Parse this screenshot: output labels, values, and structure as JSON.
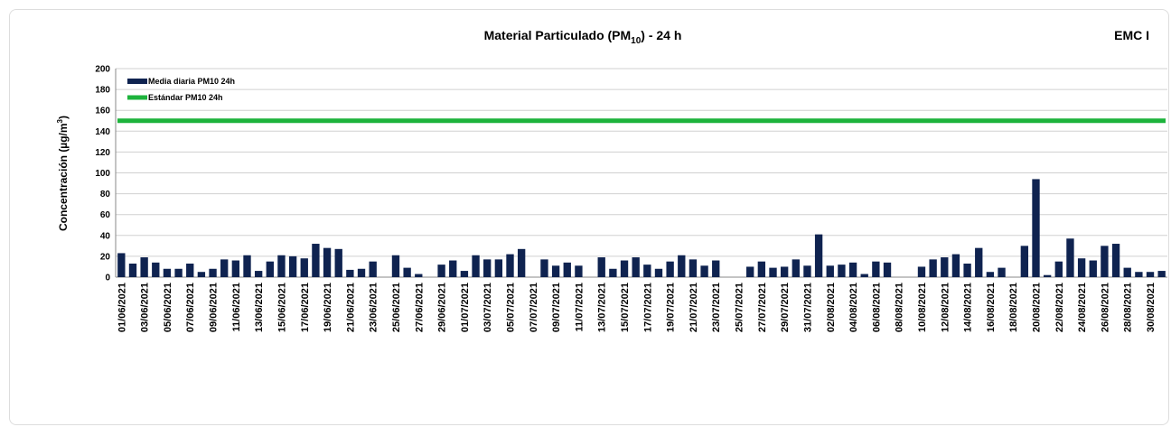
{
  "chart_data": {
    "type": "bar",
    "title_parts": [
      "Material Particulado (PM",
      "10",
      ") - 24 h"
    ],
    "station": "EMC I",
    "ylabel_parts": [
      "Concentración (µg/m",
      "3",
      ")"
    ],
    "categories": [
      "01/06/2021",
      null,
      "03/06/2021",
      null,
      "05/06/2021",
      null,
      "07/06/2021",
      null,
      "09/06/2021",
      null,
      "11/06/2021",
      null,
      "13/06/2021",
      null,
      "15/06/2021",
      null,
      "17/06/2021",
      null,
      "19/06/2021",
      null,
      "21/06/2021",
      null,
      "23/06/2021",
      null,
      "25/06/2021",
      null,
      "27/06/2021",
      null,
      "29/06/2021",
      null,
      "01/07/2021",
      null,
      "03/07/2021",
      null,
      "05/07/2021",
      null,
      "07/07/2021",
      null,
      "09/07/2021",
      null,
      "11/07/2021",
      null,
      "13/07/2021",
      null,
      "15/07/2021",
      null,
      "17/07/2021",
      null,
      "19/07/2021",
      null,
      "21/07/2021",
      null,
      "23/07/2021",
      null,
      "25/07/2021",
      null,
      "27/07/2021",
      null,
      "29/07/2021",
      null,
      "31/07/2021",
      null,
      "02/08/2021",
      null,
      "04/08/2021",
      null,
      "06/08/2021",
      null,
      "08/08/2021",
      null,
      "10/08/2021",
      null,
      "12/08/2021",
      null,
      "14/08/2021",
      null,
      "16/08/2021",
      null,
      "18/08/2021",
      null,
      "20/08/2021",
      null,
      "22/08/2021",
      null,
      "24/08/2021",
      null,
      "26/08/2021",
      null,
      "28/08/2021",
      null,
      "30/08/2021",
      null
    ],
    "series": [
      {
        "name": "Media diaria PM10 24h",
        "color": "#0f2350",
        "values": [
          23,
          13,
          19,
          14,
          8,
          8,
          13,
          5,
          8,
          17,
          16,
          21,
          6,
          15,
          21,
          20,
          18,
          32,
          28,
          27,
          7,
          8,
          15,
          null,
          21,
          9,
          3,
          null,
          12,
          16,
          6,
          21,
          17,
          17,
          22,
          27,
          null,
          17,
          11,
          14,
          11,
          null,
          19,
          8,
          16,
          19,
          12,
          8,
          15,
          21,
          17,
          11,
          16,
          null,
          null,
          10,
          15,
          9,
          10,
          17,
          11,
          41,
          11,
          12,
          14,
          3,
          15,
          14,
          null,
          null,
          10,
          17,
          19,
          22,
          13,
          28,
          5,
          9,
          null,
          30,
          94,
          2,
          15,
          37,
          18,
          16,
          30,
          32,
          9,
          5,
          5,
          6
        ]
      }
    ],
    "reference": {
      "name": "Estándar PM10 24h",
      "color": "#1db33c",
      "value": 150
    },
    "ylim": [
      0,
      200
    ],
    "yticks": [
      0,
      20,
      40,
      60,
      80,
      100,
      120,
      140,
      160,
      180,
      200
    ],
    "grid": true
  }
}
